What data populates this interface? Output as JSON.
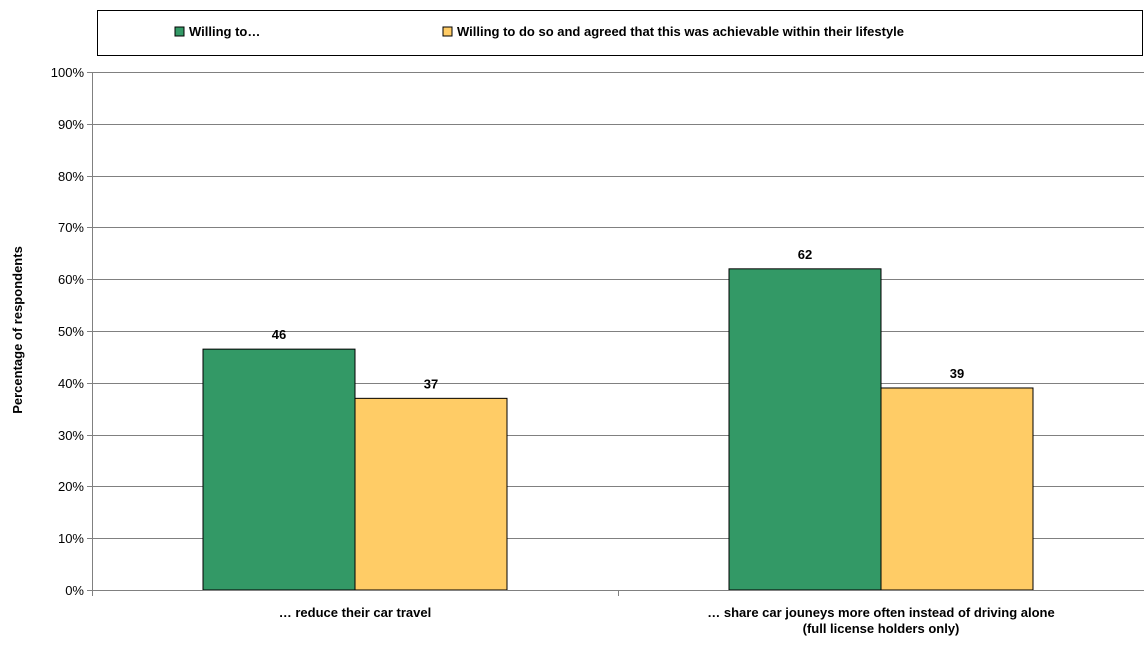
{
  "chart_data": {
    "type": "bar",
    "title": "",
    "xlabel": "",
    "ylabel": "Percentage of respondents",
    "ylim": [
      0,
      100
    ],
    "yticks": [
      "0%",
      "10%",
      "20%",
      "30%",
      "40%",
      "50%",
      "60%",
      "70%",
      "80%",
      "90%",
      "100%"
    ],
    "grid": true,
    "legend_position": "top",
    "categories": [
      [
        "… reduce their car travel"
      ],
      [
        "… share car jouneys more often instead of driving alone",
        "(full license holders only)"
      ]
    ],
    "series": [
      {
        "name": "Willing to…",
        "color": "#339966",
        "values": [
          46.5,
          62
        ],
        "labels": [
          "46",
          "62"
        ]
      },
      {
        "name": "Willing to do so and agreed that this was achievable within their lifestyle",
        "color": "#FFCC66",
        "values": [
          37,
          39
        ],
        "labels": [
          "37",
          "39"
        ]
      }
    ]
  }
}
